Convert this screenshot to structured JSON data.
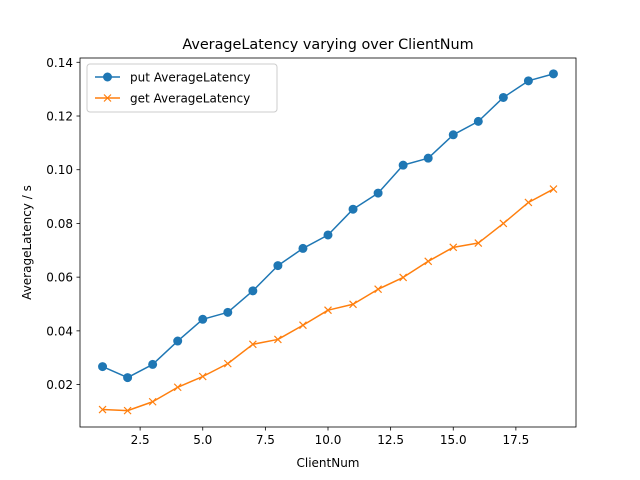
{
  "chart_data": {
    "type": "line",
    "title": "AverageLatency varying over ClientNum",
    "xlabel": "ClientNum",
    "ylabel": "AverageLatency / s",
    "x": [
      1,
      2,
      3,
      4,
      5,
      6,
      7,
      8,
      9,
      10,
      11,
      12,
      13,
      14,
      15,
      16,
      17,
      18,
      19
    ],
    "xlim": [
      0.1,
      19.9
    ],
    "ylim": [
      0.0042,
      0.1416
    ],
    "xticks": [
      2.5,
      5.0,
      7.5,
      10.0,
      12.5,
      15.0,
      17.5
    ],
    "xtick_labels": [
      "2.5",
      "5.0",
      "7.5",
      "10.0",
      "12.5",
      "15.0",
      "17.5"
    ],
    "yticks": [
      0.02,
      0.04,
      0.06,
      0.08,
      0.1,
      0.12,
      0.14
    ],
    "ytick_labels": [
      "0.02",
      "0.04",
      "0.06",
      "0.08",
      "0.10",
      "0.12",
      "0.14"
    ],
    "grid": false,
    "legend_position": "upper-left",
    "series": [
      {
        "name": "put AverageLatency",
        "color": "#1f77b4",
        "marker": "circle",
        "values": [
          0.0267,
          0.0226,
          0.0275,
          0.0362,
          0.0443,
          0.0469,
          0.0549,
          0.0643,
          0.0707,
          0.0757,
          0.0853,
          0.0913,
          0.1017,
          0.1043,
          0.113,
          0.118,
          0.1269,
          0.1331,
          0.1357
        ]
      },
      {
        "name": "get AverageLatency",
        "color": "#ff7f0e",
        "marker": "x",
        "values": [
          0.0107,
          0.0103,
          0.0136,
          0.019,
          0.023,
          0.0278,
          0.035,
          0.0368,
          0.0421,
          0.0477,
          0.0499,
          0.0555,
          0.0599,
          0.0659,
          0.0711,
          0.0727,
          0.08,
          0.0878,
          0.0928
        ]
      }
    ]
  }
}
